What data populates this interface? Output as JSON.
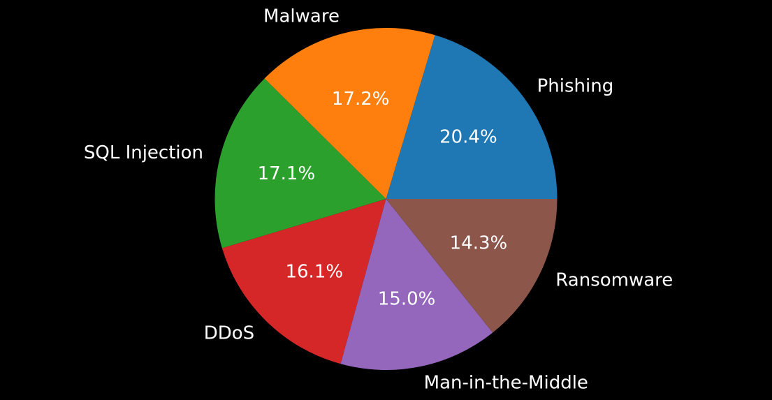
{
  "chart_data": {
    "type": "pie",
    "categories": [
      "Phishing",
      "Malware",
      "SQL Injection",
      "DDoS",
      "Man-in-the-Middle",
      "Ransomware"
    ],
    "values": [
      20.4,
      17.2,
      17.1,
      16.1,
      15.0,
      14.3
    ],
    "percent_labels": [
      "20.4%",
      "17.2%",
      "17.1%",
      "16.1%",
      "15.0%",
      "14.3%"
    ],
    "colors": [
      "#1f77b4",
      "#ff7f0e",
      "#2ca02c",
      "#d62728",
      "#9467bd",
      "#8c564b"
    ],
    "start_angle_deg": 0,
    "direction": "counterclockwise",
    "background": "#000000",
    "text_color": "#ffffff",
    "legend": "none",
    "title": ""
  }
}
